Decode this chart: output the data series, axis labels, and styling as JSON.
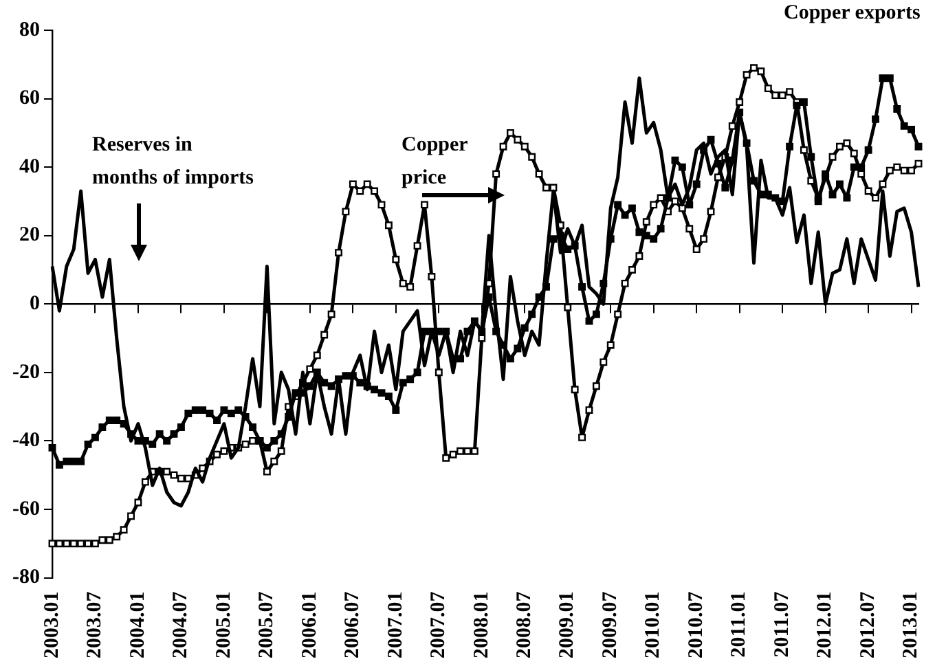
{
  "chart_data": {
    "type": "line",
    "categories": [
      "2003.01",
      null,
      null,
      null,
      null,
      null,
      "2003.07",
      null,
      null,
      null,
      null,
      null,
      "2004.01",
      null,
      null,
      null,
      null,
      null,
      "2004.07",
      null,
      null,
      null,
      null,
      null,
      "2005.01",
      null,
      null,
      null,
      null,
      null,
      "2005.07",
      null,
      null,
      null,
      null,
      null,
      "2006.01",
      null,
      null,
      null,
      null,
      null,
      "2006.07",
      null,
      null,
      null,
      null,
      null,
      "2007.01",
      null,
      null,
      null,
      null,
      null,
      "2007.07",
      null,
      null,
      null,
      null,
      null,
      "2008.01",
      null,
      null,
      null,
      null,
      null,
      "2008.07",
      null,
      null,
      null,
      null,
      null,
      "2009.01",
      null,
      null,
      null,
      null,
      null,
      "2009.07",
      null,
      null,
      null,
      null,
      null,
      "2010.01",
      null,
      null,
      null,
      null,
      null,
      "2010.07",
      null,
      null,
      null,
      null,
      null,
      "2011.01",
      null,
      null,
      null,
      null,
      null,
      "2011.07",
      null,
      null,
      null,
      null,
      null,
      "2012.01",
      null,
      null,
      null,
      null,
      null,
      "2012.07",
      null,
      null,
      null,
      null,
      null,
      "2013.01",
      null
    ],
    "series": [
      {
        "name": "Copper price",
        "color": "#000000",
        "marker": "square",
        "values": [
          -70,
          -70,
          -70,
          -70,
          -70,
          -70,
          -70,
          -69,
          -69,
          -68,
          -66,
          -62,
          -58,
          -52,
          -49,
          -49,
          -49,
          -50,
          -51,
          -51,
          -50,
          -48,
          -46,
          -44,
          -43,
          -42,
          -42,
          -41,
          -40,
          -40,
          -49,
          -46,
          -43,
          -30,
          -27,
          -23,
          -19,
          -15,
          -9,
          -3,
          15,
          27,
          35,
          33,
          35,
          33,
          29,
          23,
          13,
          6,
          5,
          17,
          29,
          8,
          -20,
          -45,
          -44,
          -43,
          -43,
          -43,
          -10,
          6,
          38,
          46,
          50,
          48,
          46,
          43,
          38,
          34,
          34,
          23,
          -1,
          -25,
          -39,
          -31,
          -24,
          -17,
          -12,
          -3,
          6,
          10,
          14,
          24,
          29,
          31,
          27,
          30,
          28,
          22,
          16,
          19,
          27,
          37,
          43,
          52,
          59,
          67,
          69,
          68,
          63,
          61,
          61,
          62,
          59,
          45,
          36,
          31,
          37,
          43,
          46,
          47,
          44,
          38,
          33,
          31,
          35,
          39,
          40,
          39,
          39,
          41
        ]
      },
      {
        "name": "Copper exports",
        "color": "#000000",
        "marker": "square",
        "values": [
          -42,
          -47,
          -46,
          -46,
          -46,
          -41,
          -39,
          -36,
          -34,
          -34,
          -35,
          -38,
          -40,
          -40,
          -41,
          -38,
          -40,
          -38,
          -36,
          -32,
          -31,
          -31,
          -32,
          -34,
          -31,
          -32,
          -31,
          -33,
          -36,
          -40,
          -42,
          -40,
          -38,
          -33,
          -26,
          -26,
          -24,
          -20,
          -23,
          -24,
          -22,
          -21,
          -21,
          -23,
          -24,
          -25,
          -26,
          -27,
          -31,
          -23,
          -22,
          -20,
          -8,
          -8,
          -8,
          -8,
          -16,
          -16,
          -8,
          -5,
          -8,
          2,
          -8,
          -12,
          -16,
          -13,
          -7,
          -3,
          2,
          5,
          19,
          20,
          16,
          17,
          5,
          -5,
          -3,
          6,
          19,
          29,
          26,
          28,
          21,
          20,
          19,
          22,
          31,
          42,
          40,
          29,
          35,
          45,
          48,
          41,
          34,
          42,
          56,
          47,
          36,
          32,
          32,
          31,
          30,
          46,
          58,
          59,
          43,
          30,
          38,
          32,
          35,
          31,
          40,
          40,
          45,
          54,
          66,
          66,
          57,
          52,
          51,
          46
        ]
      },
      {
        "name": "Reserves in months of imports",
        "color": "#000000",
        "marker": "none",
        "values": [
          11,
          -2,
          11,
          16,
          33,
          9,
          13,
          2,
          13,
          -10,
          -30,
          -40,
          -35,
          -42,
          -53,
          -48,
          -55,
          -58,
          -59,
          -55,
          -48,
          -52,
          -45,
          -40,
          -35,
          -45,
          -42,
          -30,
          -16,
          -30,
          11,
          -35,
          -20,
          -25,
          -38,
          -20,
          -35,
          -20,
          -30,
          -38,
          -22,
          -38,
          -20,
          -15,
          -25,
          -8,
          -20,
          -12,
          -25,
          -8,
          -5,
          -2,
          -18,
          -8,
          -15,
          -8,
          -20,
          -8,
          -15,
          -5,
          -8,
          20,
          -3,
          -22,
          8,
          -5,
          -15,
          -8,
          -12,
          12,
          33,
          15,
          22,
          17,
          23,
          5,
          3,
          0,
          28,
          37,
          59,
          47,
          66,
          50,
          53,
          45,
          31,
          35,
          29,
          34,
          45,
          47,
          38,
          43,
          45,
          32,
          56,
          46,
          12,
          42,
          31,
          31,
          26,
          34,
          18,
          26,
          6,
          21,
          0,
          9,
          10,
          19,
          6,
          19,
          13,
          7,
          33,
          14,
          27,
          28,
          21,
          5
        ]
      }
    ],
    "ylim": [
      -80,
      80
    ],
    "yticks": [
      -80,
      -60,
      -40,
      -20,
      0,
      20,
      40,
      60,
      80
    ],
    "legend": false,
    "line_style": "solid"
  }
}
